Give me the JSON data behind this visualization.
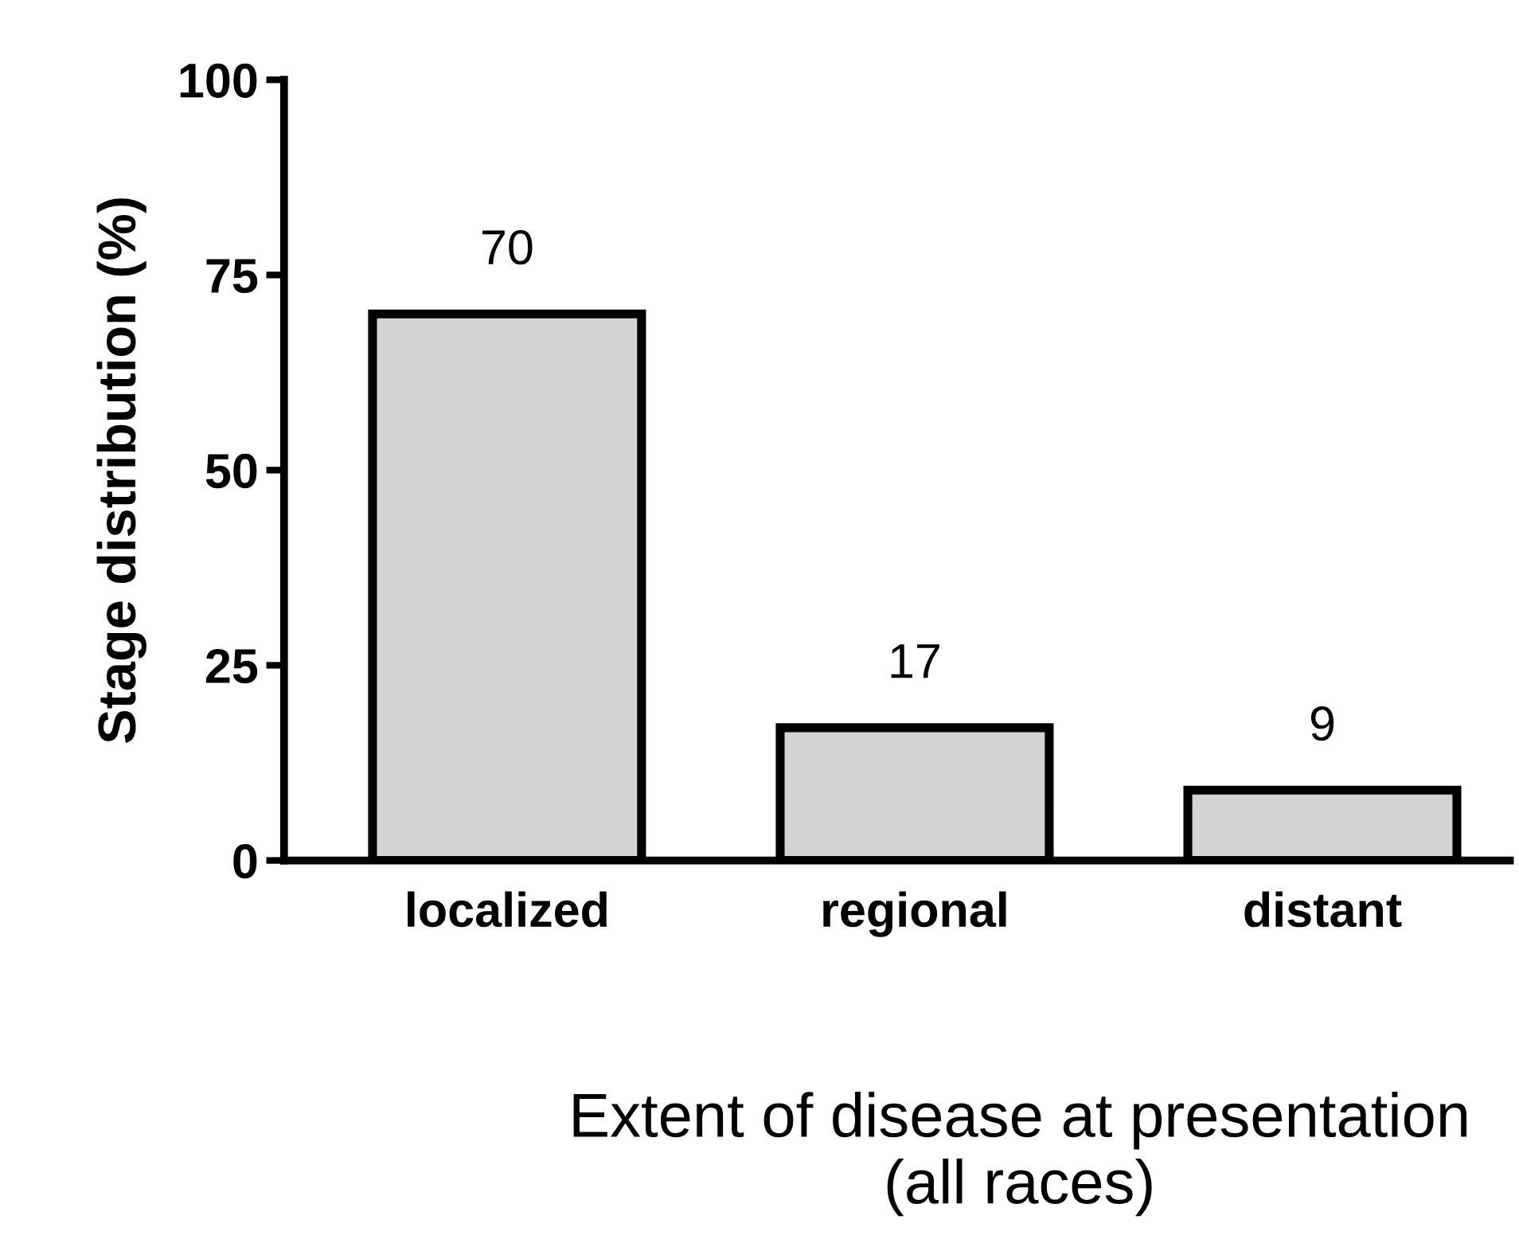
{
  "chart_data": {
    "type": "bar",
    "xlabel": "Extent of disease at presentation\n(all races)",
    "ylabel": "Stage distribution (%)",
    "categories": [
      "localized",
      "regional",
      "distant"
    ],
    "values": [
      70,
      17,
      9
    ],
    "color": "#d3d3d3",
    "ylim": [
      0,
      100
    ],
    "yticks": [
      0,
      25,
      50,
      75,
      100
    ],
    "data_labels": true,
    "grid": false,
    "legend": false
  }
}
